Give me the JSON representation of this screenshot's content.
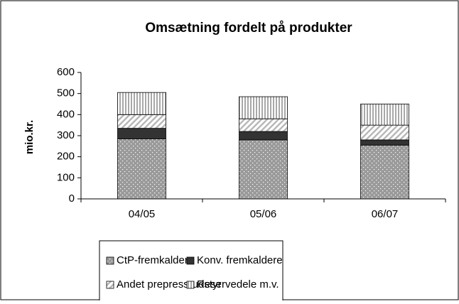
{
  "chart_data": {
    "type": "stacked_bar",
    "title": "Omsætning fordelt på produkter",
    "y_label": "mio.kr.",
    "categories": [
      "04/05",
      "05/06",
      "06/07"
    ],
    "series": [
      {
        "name": "CtP-fremkaldere",
        "color": "#9a9a9a",
        "pattern": "dots",
        "values": [
          285,
          280,
          255
        ]
      },
      {
        "name": "Konv. fremkaldere",
        "color": "#333333",
        "pattern": "solid",
        "values": [
          50,
          40,
          25
        ]
      },
      {
        "name": "Andet prepress-udstyr",
        "color": "#b8b8b8",
        "pattern": "diagonal",
        "values": [
          65,
          60,
          70
        ]
      },
      {
        "name": "Reservedele m.v.",
        "color": "#a8a8a8",
        "pattern": "vertical",
        "values": [
          105,
          105,
          100
        ]
      }
    ],
    "ylim": [
      0,
      600
    ],
    "yticks": [
      0,
      100,
      200,
      300,
      400,
      500,
      600
    ],
    "grid": false
  }
}
